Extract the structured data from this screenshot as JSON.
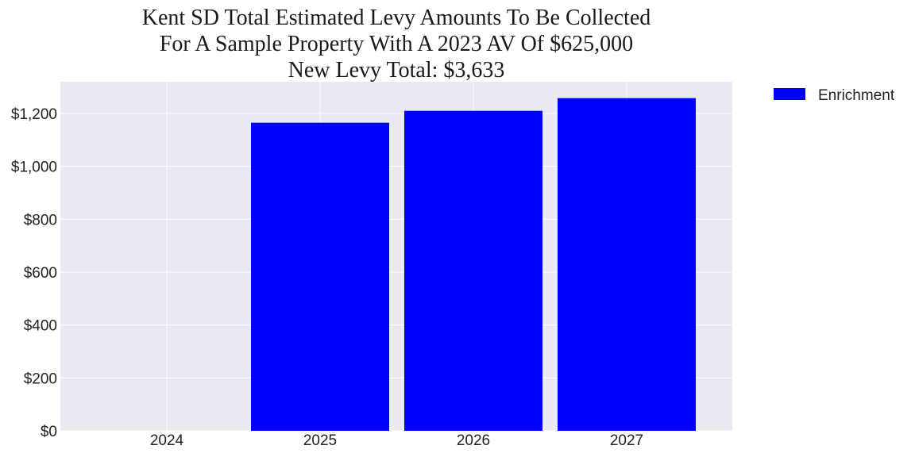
{
  "chart_data": {
    "type": "bar",
    "title_lines": [
      "Kent SD Total Estimated Levy Amounts To Be Collected",
      "For A Sample Property With A 2023 AV Of $625,000",
      "New Levy Total: $3,633"
    ],
    "categories": [
      "2024",
      "2025",
      "2026",
      "2027"
    ],
    "series": [
      {
        "name": "Enrichment",
        "values": [
          0,
          1165,
          1210,
          1258
        ],
        "color": "#0000ff"
      }
    ],
    "y_ticks": [
      0,
      200,
      400,
      600,
      800,
      1000,
      1200
    ],
    "y_tick_labels": [
      "$0",
      "$200",
      "$400",
      "$600",
      "$800",
      "$1,000",
      "$1,200"
    ],
    "ylim": [
      0,
      1320
    ],
    "xlabel": "",
    "ylabel": "",
    "grid": true,
    "background_color": "#eaeaf2",
    "grid_color": "#ffffff",
    "legend_position": "outside-top-right"
  }
}
